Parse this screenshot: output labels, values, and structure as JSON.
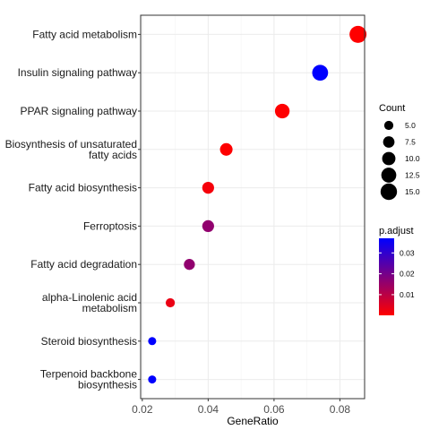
{
  "chart_data": {
    "type": "scatter",
    "title": "",
    "xlabel": "GeneRatio",
    "ylabel": "",
    "xlim": [
      0.0195,
      0.0875
    ],
    "x_ticks": [
      {
        "value": 0.02,
        "label": "0.02"
      },
      {
        "value": 0.04,
        "label": "0.04"
      },
      {
        "value": 0.06,
        "label": "0.06"
      },
      {
        "value": 0.08,
        "label": "0.08"
      }
    ],
    "grid": true,
    "categories": [
      {
        "label": [
          "Fatty acid metabolism"
        ],
        "gene_ratio": 0.0855,
        "count": 16,
        "p_adjust": 0.0001
      },
      {
        "label": [
          "Insulin signaling pathway"
        ],
        "gene_ratio": 0.074,
        "count": 14,
        "p_adjust": 0.037
      },
      {
        "label": [
          "PPAR signaling pathway"
        ],
        "gene_ratio": 0.0625,
        "count": 12,
        "p_adjust": 0.0003
      },
      {
        "label": [
          "Biosynthesis of unsaturated",
          "fatty acids"
        ],
        "gene_ratio": 0.0455,
        "count": 9,
        "p_adjust": 0.0003
      },
      {
        "label": [
          "Fatty acid biosynthesis"
        ],
        "gene_ratio": 0.04,
        "count": 8,
        "p_adjust": 0.0015
      },
      {
        "label": [
          "Ferroptosis"
        ],
        "gene_ratio": 0.04,
        "count": 8,
        "p_adjust": 0.016
      },
      {
        "label": [
          "Fatty acid degradation"
        ],
        "gene_ratio": 0.0343,
        "count": 7,
        "p_adjust": 0.016
      },
      {
        "label": [
          "alpha-Linolenic acid",
          "metabolism"
        ],
        "gene_ratio": 0.0285,
        "count": 5,
        "p_adjust": 0.003
      },
      {
        "label": [
          "Steroid biosynthesis"
        ],
        "gene_ratio": 0.023,
        "count": 4,
        "p_adjust": 0.037
      },
      {
        "label": [
          "Terpenoid backbone",
          "biosynthesis"
        ],
        "gene_ratio": 0.023,
        "count": 4,
        "p_adjust": 0.037
      }
    ],
    "legend_size": {
      "title": "Count",
      "entries": [
        {
          "value": 5,
          "label": "5.0"
        },
        {
          "value": 7.5,
          "label": "7.5"
        },
        {
          "value": 10,
          "label": "10.0"
        },
        {
          "value": 12.5,
          "label": "12.5"
        },
        {
          "value": 15,
          "label": "15.0"
        }
      ]
    },
    "legend_color": {
      "title": "p.adjust",
      "min": 0.0001,
      "max": 0.037,
      "low_color": "#ff0000",
      "high_color": "#0000ff",
      "ticks": [
        {
          "value": 0.01,
          "label": "0.01"
        },
        {
          "value": 0.02,
          "label": "0.02"
        },
        {
          "value": 0.03,
          "label": "0.03"
        }
      ]
    },
    "legend_position": "right"
  }
}
